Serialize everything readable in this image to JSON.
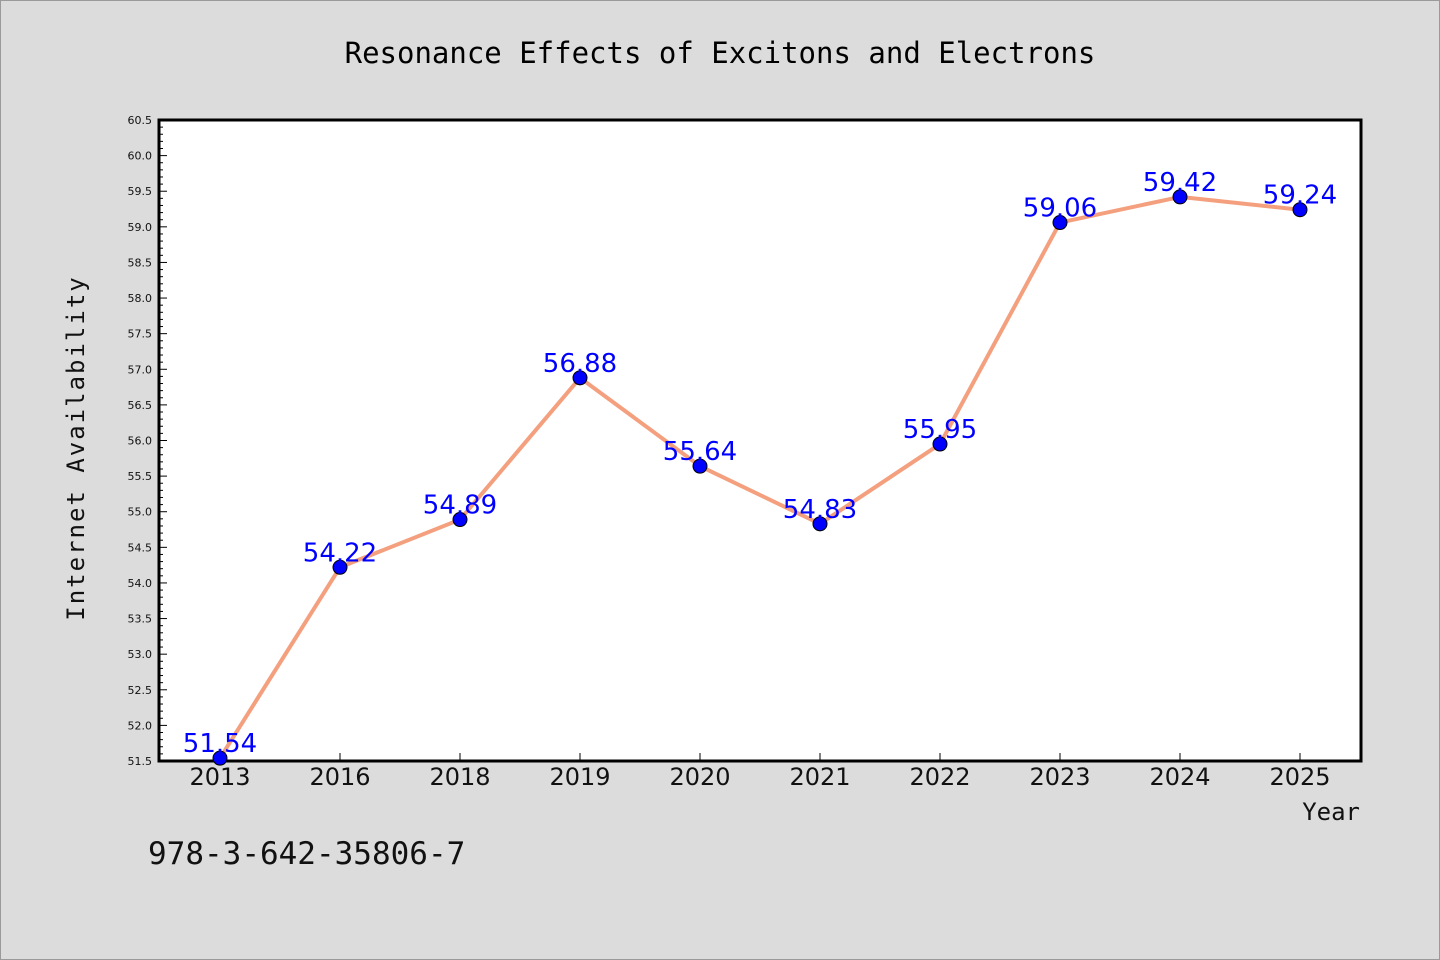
{
  "chart_data": {
    "type": "line",
    "title": "Resonance Effects of Excitons and Electrons",
    "xlabel": "Year",
    "ylabel": "Internet Availability",
    "categories": [
      "2013",
      "2016",
      "2018",
      "2019",
      "2020",
      "2021",
      "2022",
      "2023",
      "2024",
      "2025"
    ],
    "values": [
      51.54,
      54.22,
      54.89,
      56.88,
      55.64,
      54.83,
      55.95,
      59.06,
      59.42,
      59.24
    ],
    "data_labels": [
      "51.54",
      "54.22",
      "54.89",
      "56.88",
      "55.64",
      "54.83",
      "55.95",
      "59.06",
      "59.42",
      "59.24"
    ],
    "ylim": [
      51.5,
      60.5
    ],
    "yticks": [
      "51.5",
      "52.0",
      "52.5",
      "53.0",
      "53.5",
      "54.0",
      "54.5",
      "55.0",
      "55.5",
      "56.0",
      "56.5",
      "57.0",
      "57.5",
      "58.0",
      "58.5",
      "59.0",
      "59.5",
      "60.0",
      "60.5"
    ],
    "grid": false,
    "legend": "none",
    "colors": {
      "line": "#f4a07e",
      "marker": "#0000ff",
      "marker_edge": "#000000",
      "label": "#0000ff",
      "background": "#dcdcdc",
      "plot_bg": "#ffffff"
    }
  },
  "annotation": "978-3-642-35806-7"
}
